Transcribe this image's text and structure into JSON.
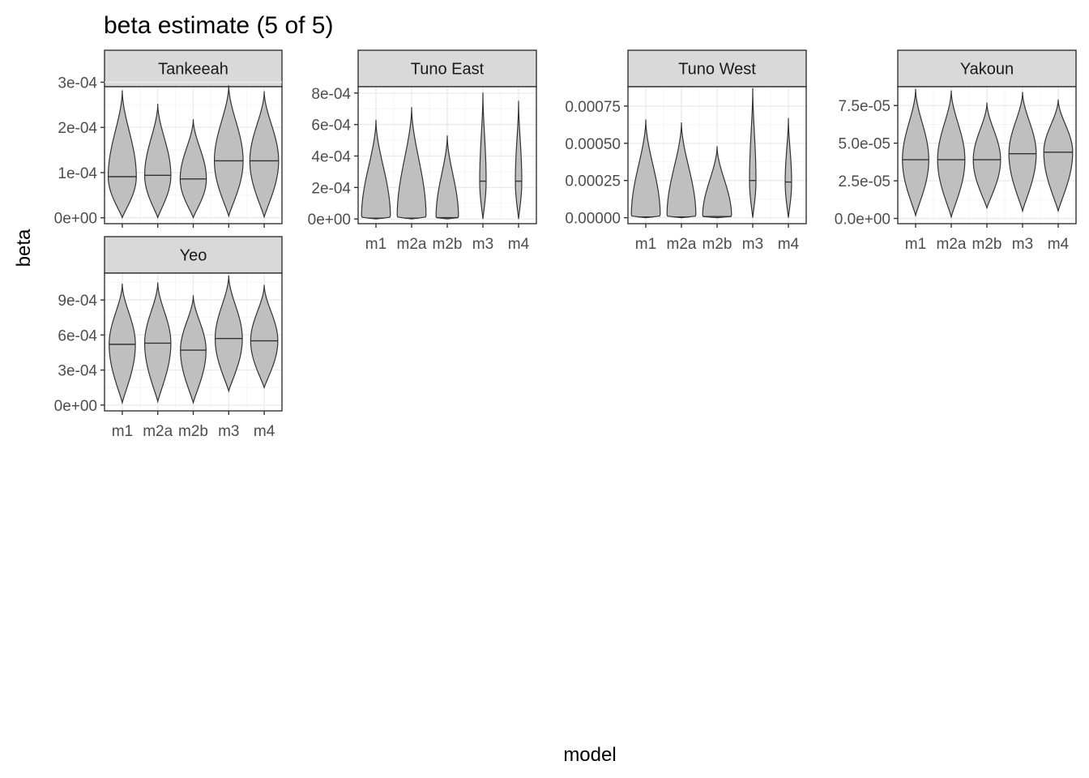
{
  "chart_data": {
    "type": "violin",
    "title": "beta estimate (5 of 5)",
    "xlabel": "model",
    "ylabel": "beta",
    "grid": true,
    "categories": [
      "m1",
      "m2a",
      "m2b",
      "m3",
      "m4"
    ],
    "facets": [
      {
        "name": "Tankeeah",
        "ylim": [
          -1.3e-05,
          0.00029
        ],
        "yticks": [
          0,
          0.0001,
          0.0002,
          0.0003
        ],
        "yticklabels": [
          "0e+00",
          "1e-04",
          "2e-04",
          "3e-04"
        ],
        "violins": [
          {
            "model": "m1",
            "min": 5e-07,
            "max": 0.000282,
            "median": 9.1e-05,
            "width": 0.88
          },
          {
            "model": "m2a",
            "min": 5e-07,
            "max": 0.000252,
            "median": 9.4e-05,
            "width": 0.82
          },
          {
            "model": "m2b",
            "min": 5e-07,
            "max": 0.000218,
            "median": 8.6e-05,
            "width": 0.82
          },
          {
            "model": "m3",
            "min": 4e-06,
            "max": 0.000293,
            "median": 0.000126,
            "width": 0.9
          },
          {
            "model": "m4",
            "min": 2e-06,
            "max": 0.00028,
            "median": 0.000126,
            "width": 0.9
          }
        ]
      },
      {
        "name": "Tuno East",
        "ylim": [
          -3e-05,
          0.00084
        ],
        "yticks": [
          0,
          0.0002,
          0.0004,
          0.0006,
          0.0008
        ],
        "yticklabels": [
          "0e+00",
          "2e-04",
          "4e-04",
          "6e-04",
          "8e-04"
        ],
        "violins": [
          {
            "model": "m1",
            "min": 0,
            "max": 0.00063,
            "median": 5e-06,
            "width": 0.9
          },
          {
            "model": "m2a",
            "min": 0,
            "max": 0.00071,
            "median": 5e-06,
            "width": 0.9
          },
          {
            "model": "m2b",
            "min": 0,
            "max": 0.00053,
            "median": 8e-06,
            "width": 0.7
          },
          {
            "model": "m3",
            "min": 0,
            "max": 0.000802,
            "median": 0.00024,
            "width": 0.2
          },
          {
            "model": "m4",
            "min": 0,
            "max": 0.00075,
            "median": 0.00024,
            "width": 0.2
          }
        ]
      },
      {
        "name": "Tuno West",
        "ylim": [
          -4e-05,
          0.00088
        ],
        "yticks": [
          0,
          0.00025,
          0.0005,
          0.00075
        ],
        "yticklabels": [
          "0.00000",
          "0.00025",
          "0.00050",
          "0.00075"
        ],
        "violins": [
          {
            "model": "m1",
            "min": 0,
            "max": 0.00066,
            "median": 5e-06,
            "width": 0.9
          },
          {
            "model": "m2a",
            "min": 0,
            "max": 0.00064,
            "median": 5e-06,
            "width": 0.9
          },
          {
            "model": "m2b",
            "min": 0,
            "max": 0.00048,
            "median": 8e-06,
            "width": 0.9
          },
          {
            "model": "m3",
            "min": 0,
            "max": 0.00087,
            "median": 0.00025,
            "width": 0.2
          },
          {
            "model": "m4",
            "min": 0,
            "max": 0.00067,
            "median": 0.00024,
            "width": 0.2
          }
        ]
      },
      {
        "name": "Yakoun",
        "ylim": [
          -3.5e-06,
          8.75e-05
        ],
        "yticks": [
          0,
          2.5e-05,
          5e-05,
          7.5e-05
        ],
        "yticklabels": [
          "0.0e+00",
          "2.5e-05",
          "5.0e-05",
          "7.5e-05"
        ],
        "violins": [
          {
            "model": "m1",
            "min": 2e-06,
            "max": 8.6e-05,
            "median": 3.9e-05,
            "width": 0.82
          },
          {
            "model": "m2a",
            "min": 1e-06,
            "max": 8.5e-05,
            "median": 3.9e-05,
            "width": 0.85
          },
          {
            "model": "m2b",
            "min": 7e-06,
            "max": 7.7e-05,
            "median": 3.9e-05,
            "width": 0.85
          },
          {
            "model": "m3",
            "min": 5e-06,
            "max": 8.4e-05,
            "median": 4.3e-05,
            "width": 0.85
          },
          {
            "model": "m4",
            "min": 5e-06,
            "max": 7.9e-05,
            "median": 4.4e-05,
            "width": 0.9
          }
        ]
      },
      {
        "name": "Yeo",
        "ylim": [
          -5e-05,
          0.00113
        ],
        "yticks": [
          0,
          0.0003,
          0.0006,
          0.0009
        ],
        "yticklabels": [
          "0e+00",
          "3e-04",
          "6e-04",
          "9e-04"
        ],
        "violins": [
          {
            "model": "m1",
            "min": 2e-05,
            "max": 0.00104,
            "median": 0.00052,
            "width": 0.82
          },
          {
            "model": "m2a",
            "min": 3e-05,
            "max": 0.00105,
            "median": 0.00053,
            "width": 0.82
          },
          {
            "model": "m2b",
            "min": 2e-05,
            "max": 0.00094,
            "median": 0.00047,
            "width": 0.8
          },
          {
            "model": "m3",
            "min": 0.00012,
            "max": 0.00111,
            "median": 0.00057,
            "width": 0.85
          },
          {
            "model": "m4",
            "min": 0.00015,
            "max": 0.00103,
            "median": 0.00055,
            "width": 0.85
          }
        ]
      }
    ]
  }
}
